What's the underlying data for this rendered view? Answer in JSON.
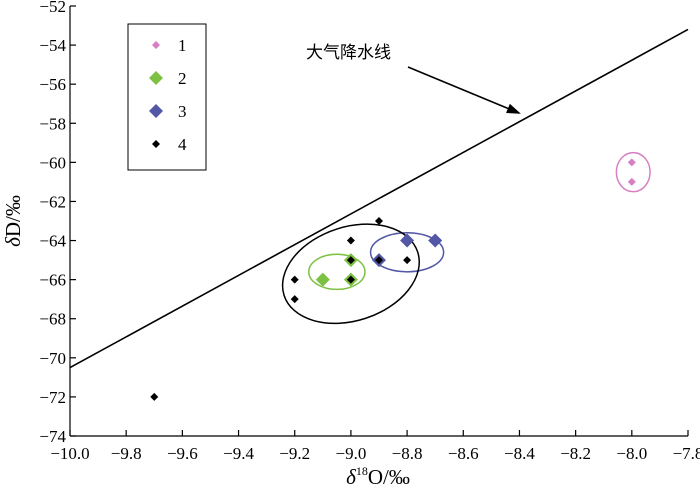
{
  "chart_data": {
    "type": "scatter",
    "title": "",
    "xlabel": {
      "prefix": "δ",
      "sup": "18",
      "suffix": "O/‰"
    },
    "ylabel": "δD/‰",
    "xlim": [
      -10.0,
      -7.8
    ],
    "ylim": [
      -74,
      -52
    ],
    "x_ticks": [
      -10.0,
      -9.8,
      -9.6,
      -9.4,
      -9.2,
      -9.0,
      -8.8,
      -8.6,
      -8.4,
      -8.2,
      -8.0,
      -7.8
    ],
    "x_tick_labels": [
      "−10.0",
      "−9.8",
      "−9.6",
      "−9.4",
      "−9.2",
      "−9.0",
      "−8.8",
      "−8.6",
      "−8.4",
      "−8.2",
      "−8.0",
      "−7.8"
    ],
    "y_ticks": [
      -52,
      -54,
      -56,
      -58,
      -60,
      -62,
      -64,
      -66,
      -68,
      -70,
      -72,
      -74
    ],
    "y_tick_labels": [
      "−52",
      "−54",
      "−56",
      "−58",
      "−60",
      "−62",
      "−64",
      "−66",
      "−68",
      "−70",
      "−72",
      "−74"
    ],
    "grid": false,
    "legend_position": "top-left",
    "series": [
      {
        "name": "1",
        "color": "#d67fc3",
        "marker": "diamond-small",
        "points": [
          [
            -8.0,
            -60
          ],
          [
            -8.0,
            -61
          ]
        ]
      },
      {
        "name": "2",
        "color": "#7dc143",
        "marker": "diamond-large",
        "points": [
          [
            -9.1,
            -66
          ],
          [
            -9.0,
            -65
          ],
          [
            -9.0,
            -66
          ]
        ]
      },
      {
        "name": "3",
        "color": "#5257a6",
        "marker": "diamond-large",
        "points": [
          [
            -8.9,
            -65
          ],
          [
            -8.8,
            -64
          ],
          [
            -8.7,
            -64
          ]
        ]
      },
      {
        "name": "4",
        "color": "#000000",
        "marker": "diamond-small",
        "points": [
          [
            -9.7,
            -72
          ],
          [
            -9.2,
            -66
          ],
          [
            -9.2,
            -67
          ],
          [
            -9.0,
            -64
          ],
          [
            -9.0,
            -65
          ],
          [
            -9.0,
            -66
          ],
          [
            -8.9,
            -63
          ],
          [
            -8.9,
            -65
          ],
          [
            -8.8,
            -65
          ]
        ]
      }
    ],
    "reference_line": {
      "label": "大气降水线",
      "x": [
        -10.0,
        -7.8
      ],
      "y": [
        -70.5,
        -53.2
      ],
      "color": "#000000"
    },
    "ellipses": [
      {
        "group": "1",
        "color": "#d67fc3",
        "cx": -7.995,
        "cy": -60.5,
        "rx": 0.06,
        "ry": 1.0
      },
      {
        "group": "2",
        "color": "#7dc143",
        "cx": -9.05,
        "cy": -65.6,
        "rx": 0.1,
        "ry": 0.9
      },
      {
        "group": "3",
        "color": "#5257a6",
        "cx": -8.8,
        "cy": -64.6,
        "rx": 0.13,
        "ry": 1.0
      },
      {
        "group": "4",
        "color": "#000000",
        "cx": -9.0,
        "cy": -65.7,
        "rx": 0.25,
        "ry": 2.4,
        "rotate": -18
      }
    ]
  }
}
